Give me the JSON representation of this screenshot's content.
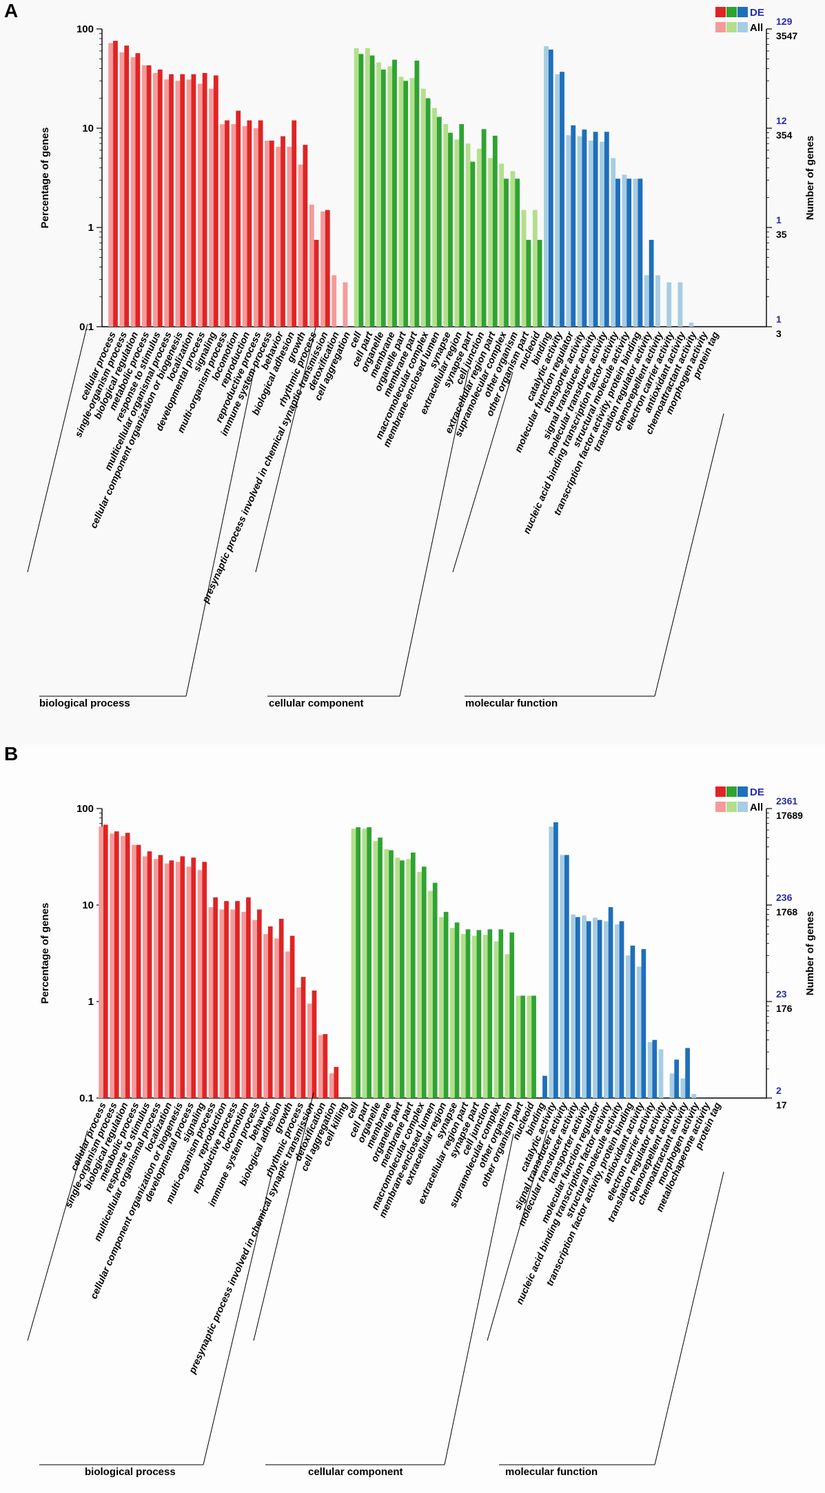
{
  "colors": {
    "bp_de": "#e02424",
    "bp_all": "#f59a9a",
    "cc_de": "#2fa332",
    "cc_all": "#b3df8c",
    "mf_de": "#1e6fba",
    "mf_all": "#a7cde3",
    "de_text": "#2a2aa8"
  },
  "chart_data": [
    {
      "type": "bar",
      "panel_label": "A",
      "y_scale": "log",
      "ylim": [
        0.1,
        100
      ],
      "ylabel_left": "Percentage of genes",
      "ylabel_right": "Number of genes",
      "left_ticks": [
        "100",
        "10",
        "1",
        "0.1"
      ],
      "right_ticks_de": [
        "129",
        "12",
        "1",
        "1"
      ],
      "right_ticks_all": [
        "3547",
        "354",
        "35",
        "3"
      ],
      "legend": {
        "de": "DE",
        "all": "All"
      },
      "categories": [
        {
          "group": "bp",
          "label": "cellular process",
          "all": 72,
          "de": 76
        },
        {
          "group": "bp",
          "label": "single-organism process",
          "all": 58,
          "de": 68
        },
        {
          "group": "bp",
          "label": "biological regulation",
          "all": 52,
          "de": 57
        },
        {
          "group": "bp",
          "label": "metabolic process",
          "all": 43,
          "de": 43
        },
        {
          "group": "bp",
          "label": "response to stimulus",
          "all": 36,
          "de": 39
        },
        {
          "group": "bp",
          "label": "multicellular organismal process",
          "all": 31,
          "de": 35
        },
        {
          "group": "bp",
          "label": "cellular component organization or biogenesis",
          "all": 30,
          "de": 35
        },
        {
          "group": "bp",
          "label": "localization",
          "all": 31,
          "de": 35
        },
        {
          "group": "bp",
          "label": "developmental process",
          "all": 28,
          "de": 36
        },
        {
          "group": "bp",
          "label": "signaling",
          "all": 25,
          "de": 34
        },
        {
          "group": "bp",
          "label": "multi-organism process",
          "all": 11,
          "de": 12
        },
        {
          "group": "bp",
          "label": "locomotion",
          "all": 11,
          "de": 15
        },
        {
          "group": "bp",
          "label": "reproduction",
          "all": 10.5,
          "de": 12
        },
        {
          "group": "bp",
          "label": "reproductive process",
          "all": 10,
          "de": 12
        },
        {
          "group": "bp",
          "label": "immune system process",
          "all": 7.5,
          "de": 7.5
        },
        {
          "group": "bp",
          "label": "behavior",
          "all": 6.5,
          "de": 8.3
        },
        {
          "group": "bp",
          "label": "biological adhesion",
          "all": 6.5,
          "de": 12
        },
        {
          "group": "bp",
          "label": "growth",
          "all": 4.3,
          "de": 6.8
        },
        {
          "group": "bp",
          "label": "rhythmic process",
          "all": 1.7,
          "de": 0.75
        },
        {
          "group": "bp",
          "label": "presynaptic process involved in chemical synaptic transmission",
          "all": 1.45,
          "de": 1.5
        },
        {
          "group": "bp",
          "label": "detoxification",
          "all": 0.33,
          "de": null
        },
        {
          "group": "bp",
          "label": "cell aggregation",
          "all": 0.28,
          "de": null
        },
        {
          "group": "cc",
          "label": "cell",
          "all": 64,
          "de": 56
        },
        {
          "group": "cc",
          "label": "cell part",
          "all": 64,
          "de": 54
        },
        {
          "group": "cc",
          "label": "organelle",
          "all": 46,
          "de": 39
        },
        {
          "group": "cc",
          "label": "membrane",
          "all": 42,
          "de": 49
        },
        {
          "group": "cc",
          "label": "organelle part",
          "all": 33,
          "de": 30
        },
        {
          "group": "cc",
          "label": "membrane part",
          "all": 32,
          "de": 48
        },
        {
          "group": "cc",
          "label": "macromolecular complex",
          "all": 25,
          "de": 20
        },
        {
          "group": "cc",
          "label": "membrane-enclosed lumen",
          "all": 16,
          "de": 13
        },
        {
          "group": "cc",
          "label": "synapse",
          "all": 11,
          "de": 9
        },
        {
          "group": "cc",
          "label": "extracellular region",
          "all": 7.7,
          "de": 11
        },
        {
          "group": "cc",
          "label": "synapse part",
          "all": 7,
          "de": 4.6
        },
        {
          "group": "cc",
          "label": "cell junction",
          "all": 6.2,
          "de": 9.8
        },
        {
          "group": "cc",
          "label": "extracellular region part",
          "all": 5,
          "de": 8.4
        },
        {
          "group": "cc",
          "label": "supramolecular complex",
          "all": 4.4,
          "de": 3.1
        },
        {
          "group": "cc",
          "label": "other organism",
          "all": 3.7,
          "de": 3.1
        },
        {
          "group": "cc",
          "label": "other organism part",
          "all": 1.5,
          "de": 0.75
        },
        {
          "group": "cc",
          "label": "nucleoid",
          "all": 1.5,
          "de": 0.75
        },
        {
          "group": "mf",
          "label": "binding",
          "all": 67,
          "de": 62
        },
        {
          "group": "mf",
          "label": "catalytic activity",
          "all": 35,
          "de": 37
        },
        {
          "group": "mf",
          "label": "molecular function regulator",
          "all": 8.5,
          "de": 10.7
        },
        {
          "group": "mf",
          "label": "transporter activity",
          "all": 8.3,
          "de": 9.7
        },
        {
          "group": "mf",
          "label": "signal transducer activity",
          "all": 7.5,
          "de": 9.2
        },
        {
          "group": "mf",
          "label": "molecular transducer activity",
          "all": 7.3,
          "de": 9.2
        },
        {
          "group": "mf",
          "label": "nucleic acid binding transcription factor activity",
          "all": 5,
          "de": 3.1
        },
        {
          "group": "mf",
          "label": "structural molecule activity",
          "all": 3.4,
          "de": 3.1
        },
        {
          "group": "mf",
          "label": "transcription factor activity, protein binding",
          "all": 3.1,
          "de": 3.1
        },
        {
          "group": "mf",
          "label": "translation regulator activity",
          "all": 0.33,
          "de": 0.75
        },
        {
          "group": "mf",
          "label": "chemorepellent activity",
          "all": 0.33,
          "de": null
        },
        {
          "group": "mf",
          "label": "electron carrier activity",
          "all": 0.28,
          "de": null
        },
        {
          "group": "mf",
          "label": "antioxidant activity",
          "all": 0.28,
          "de": null
        },
        {
          "group": "mf",
          "label": "chemoattractant activity",
          "all": 0.11,
          "de": null
        },
        {
          "group": "mf",
          "label": "morphogen activity",
          "all": null,
          "de": null
        },
        {
          "group": "mf",
          "label": "protein tag",
          "all": null,
          "de": null
        }
      ],
      "groups": [
        {
          "key": "bp",
          "label": "biological process"
        },
        {
          "key": "cc",
          "label": "cellular component"
        },
        {
          "key": "mf",
          "label": "molecular function"
        }
      ]
    },
    {
      "type": "bar",
      "panel_label": "B",
      "y_scale": "log",
      "ylim": [
        0.1,
        100
      ],
      "ylabel_left": "Percentage of genes",
      "ylabel_right": "Number of genes",
      "left_ticks": [
        "100",
        "10",
        "1",
        "0.1"
      ],
      "right_ticks_de": [
        "2361",
        "236",
        "23",
        "2"
      ],
      "right_ticks_all": [
        "17689",
        "1768",
        "176",
        "17"
      ],
      "legend": {
        "de": "DE",
        "all": "All"
      },
      "categories": [
        {
          "group": "bp",
          "label": "cellular process",
          "all": 65,
          "de": 68
        },
        {
          "group": "bp",
          "label": "single-organism process",
          "all": 55,
          "de": 58
        },
        {
          "group": "bp",
          "label": "biological regulation",
          "all": 52,
          "de": 56
        },
        {
          "group": "bp",
          "label": "metabolic process",
          "all": 42,
          "de": 42
        },
        {
          "group": "bp",
          "label": "response to stimulus",
          "all": 32,
          "de": 36
        },
        {
          "group": "bp",
          "label": "multicellular organismal process",
          "all": 30,
          "de": 33
        },
        {
          "group": "bp",
          "label": "localization",
          "all": 27,
          "de": 29
        },
        {
          "group": "bp",
          "label": "cellular component organization or biogenesis",
          "all": 28,
          "de": 32
        },
        {
          "group": "bp",
          "label": "developmental process",
          "all": 25,
          "de": 31
        },
        {
          "group": "bp",
          "label": "signaling",
          "all": 23,
          "de": 28
        },
        {
          "group": "bp",
          "label": "multi-organism process",
          "all": 9.5,
          "de": 12
        },
        {
          "group": "bp",
          "label": "reproduction",
          "all": 9,
          "de": 11
        },
        {
          "group": "bp",
          "label": "reproductive process",
          "all": 9,
          "de": 11
        },
        {
          "group": "bp",
          "label": "locomotion",
          "all": 8.5,
          "de": 12
        },
        {
          "group": "bp",
          "label": "immune system process",
          "all": 7,
          "de": 9
        },
        {
          "group": "bp",
          "label": "behavior",
          "all": 5,
          "de": 6
        },
        {
          "group": "bp",
          "label": "biological adhesion",
          "all": 4.5,
          "de": 7.2
        },
        {
          "group": "bp",
          "label": "growth",
          "all": 3.3,
          "de": 4.8
        },
        {
          "group": "bp",
          "label": "rhythmic process",
          "all": 1.4,
          "de": 1.8
        },
        {
          "group": "bp",
          "label": "presynaptic process involved in chemical synaptic transmission",
          "all": 0.95,
          "de": 1.3
        },
        {
          "group": "bp",
          "label": "detoxification",
          "all": 0.45,
          "de": 0.46
        },
        {
          "group": "bp",
          "label": "cell aggregation",
          "all": 0.18,
          "de": 0.21
        },
        {
          "group": "bp",
          "label": "cell killing",
          "all": null,
          "de": null
        },
        {
          "group": "cc",
          "label": "cell",
          "all": 62,
          "de": 64
        },
        {
          "group": "cc",
          "label": "cell part",
          "all": 62,
          "de": 64
        },
        {
          "group": "cc",
          "label": "organelle",
          "all": 46,
          "de": 50
        },
        {
          "group": "cc",
          "label": "membrane",
          "all": 38,
          "de": 37
        },
        {
          "group": "cc",
          "label": "organelle part",
          "all": 31,
          "de": 29
        },
        {
          "group": "cc",
          "label": "membrane part",
          "all": 30,
          "de": 35
        },
        {
          "group": "cc",
          "label": "macromolecular complex",
          "all": 22,
          "de": 25
        },
        {
          "group": "cc",
          "label": "membrane-enclosed lumen",
          "all": 14,
          "de": 17
        },
        {
          "group": "cc",
          "label": "extracellular region",
          "all": 7.5,
          "de": 8.5
        },
        {
          "group": "cc",
          "label": "synapse",
          "all": 5.8,
          "de": 6.6
        },
        {
          "group": "cc",
          "label": "extracellular region part",
          "all": 5,
          "de": 5.6
        },
        {
          "group": "cc",
          "label": "synapse part",
          "all": 4.8,
          "de": 5.5
        },
        {
          "group": "cc",
          "label": "cell junction",
          "all": 4.9,
          "de": 5.6
        },
        {
          "group": "cc",
          "label": "supramolecular complex",
          "all": 4.2,
          "de": 5.6
        },
        {
          "group": "cc",
          "label": "other organism",
          "all": 3.1,
          "de": 5.2
        },
        {
          "group": "cc",
          "label": "other organism part",
          "all": 1.15,
          "de": 1.15
        },
        {
          "group": "cc",
          "label": "nucleoid",
          "all": 1.15,
          "de": 1.15
        },
        {
          "group": "mf",
          "label": "binding",
          "all": null,
          "de": 0.17
        },
        {
          "group": "mf",
          "label": "catalytic activity",
          "all": 65,
          "de": 72
        },
        {
          "group": "mf",
          "label": "signal transducer activity",
          "all": 33,
          "de": 33
        },
        {
          "group": "mf",
          "label": "molecular transducer activity",
          "all": 8,
          "de": 7.5
        },
        {
          "group": "mf",
          "label": "transporter activity",
          "all": 7.8,
          "de": 6.8
        },
        {
          "group": "mf",
          "label": "molecular function regulator",
          "all": 7.4,
          "de": 7
        },
        {
          "group": "mf",
          "label": "nucleic acid binding transcription factor activity",
          "all": 6.8,
          "de": 9.5
        },
        {
          "group": "mf",
          "label": "structural molecule activity",
          "all": 6.3,
          "de": 6.8
        },
        {
          "group": "mf",
          "label": "transcription factor activity, protein binding",
          "all": 3,
          "de": 3.8
        },
        {
          "group": "mf",
          "label": "antioxidant activity",
          "all": 2.3,
          "de": 3.5
        },
        {
          "group": "mf",
          "label": "electron carrier activity",
          "all": 0.38,
          "de": 0.4
        },
        {
          "group": "mf",
          "label": "translation regulator activity",
          "all": 0.32,
          "de": null
        },
        {
          "group": "mf",
          "label": "chemorepellent activity",
          "all": 0.18,
          "de": 0.25
        },
        {
          "group": "mf",
          "label": "chemoattractant activity",
          "all": 0.16,
          "de": 0.33
        },
        {
          "group": "mf",
          "label": "morphogen activity",
          "all": 0.11,
          "de": null
        },
        {
          "group": "mf",
          "label": "metallochaperone activity",
          "all": null,
          "de": null
        },
        {
          "group": "mf",
          "label": "protein tag",
          "all": null,
          "de": null
        }
      ],
      "groups": [
        {
          "key": "bp",
          "label": "biological process"
        },
        {
          "key": "cc",
          "label": "cellular component"
        },
        {
          "key": "mf",
          "label": "molecular function"
        }
      ]
    }
  ]
}
